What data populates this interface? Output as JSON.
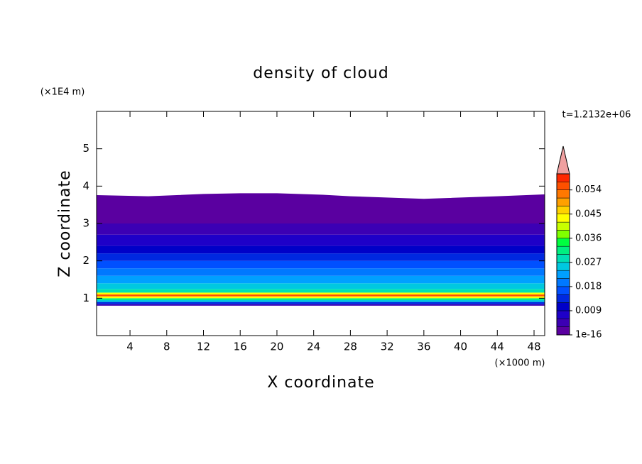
{
  "chart_data": {
    "type": "contour",
    "title": "density of cloud",
    "x_label": "X coordinate",
    "y_label": "Z coordinate",
    "x_unit": "(×1000 m)",
    "y_unit": "(×1E4 m)",
    "time_label": "t=1.2132e+06",
    "xlim": [
      0.36,
      49.16
    ],
    "ylim": [
      0,
      6
    ],
    "xticks": [
      4,
      8,
      12,
      16,
      20,
      24,
      28,
      32,
      36,
      40,
      44,
      48
    ],
    "yticks": [
      1,
      2,
      3,
      4,
      5
    ],
    "z": [
      0.8,
      0.84,
      0.9,
      0.95,
      1.0,
      1.05,
      1.1,
      1.15,
      1.25,
      1.4,
      1.6,
      1.8,
      2.0,
      2.2,
      2.4,
      2.7,
      3.0
    ],
    "values": [
      0.006,
      0.015,
      0.025,
      0.033,
      0.045,
      0.055,
      0.045,
      0.03,
      0.027,
      0.024,
      0.02,
      0.017,
      0.013,
      0.01,
      0.007,
      0.004,
      0.001
    ],
    "cloud_top": {
      "x": [
        0.36,
        6,
        12,
        16,
        20,
        25,
        28,
        36,
        44,
        49.16
      ],
      "values": [
        3.75,
        3.72,
        3.78,
        3.8,
        3.8,
        3.76,
        3.72,
        3.65,
        3.72,
        3.77
      ]
    },
    "clim": [
      1e-16,
      0.06
    ],
    "colors": [
      "#5a00a0",
      "#3c00b4",
      "#1e00c8",
      "#0000c8",
      "#0028e0",
      "#0050ff",
      "#0078ff",
      "#00a0ff",
      "#00c8e0",
      "#00e0b4",
      "#00f080",
      "#00ff40",
      "#80ff00",
      "#c8ff00",
      "#ffff00",
      "#ffd200",
      "#ffa000",
      "#ff7800",
      "#ff5000",
      "#ff2800"
    ],
    "extend_color": "#f0a0a0",
    "colorbar_ticks": [
      1e-16,
      0.009,
      0.018,
      0.027,
      0.036,
      0.045,
      0.054
    ]
  }
}
